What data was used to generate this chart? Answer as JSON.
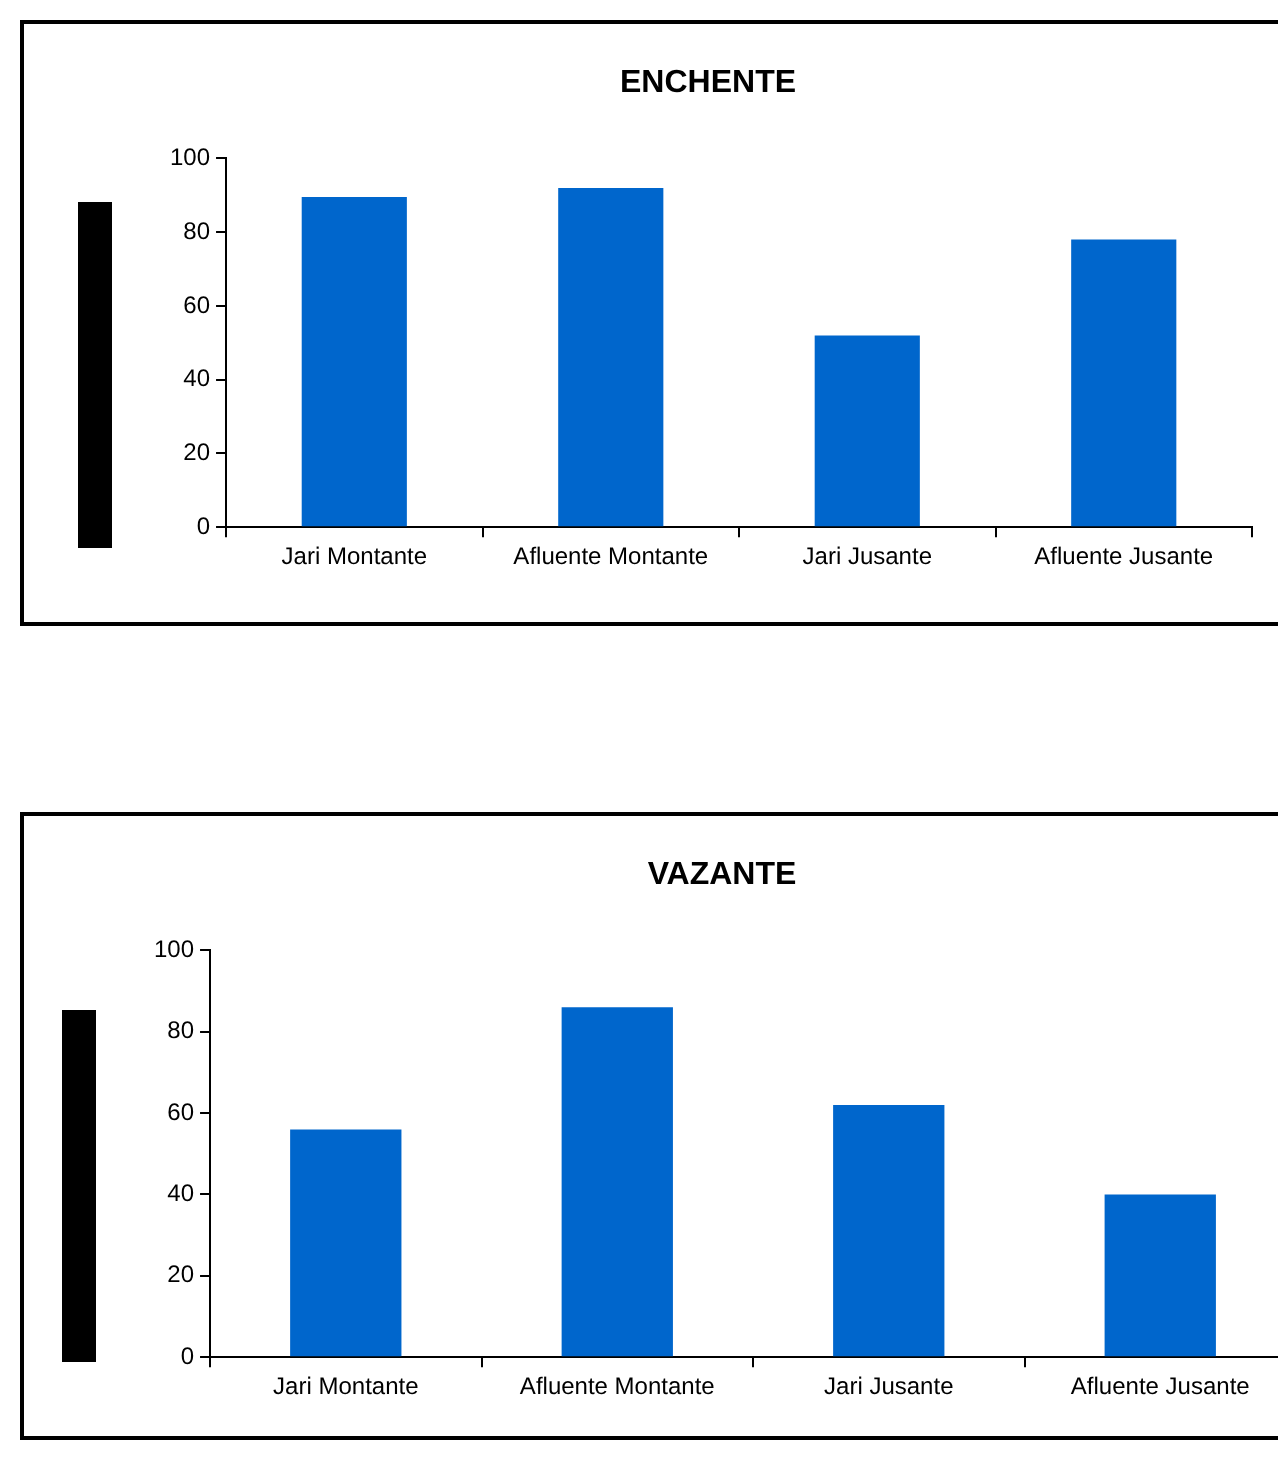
{
  "chart_data": [
    {
      "type": "bar",
      "title": "ENCHENTE",
      "categories": [
        "Jari Montante",
        "Afluente Montante",
        "Jari Jusante",
        "Afluente Jusante"
      ],
      "values": [
        89.5,
        92,
        52,
        78
      ],
      "color": "#0066cc",
      "ylim": [
        0,
        100
      ],
      "yticks": [
        0,
        20,
        40,
        60,
        80,
        100
      ],
      "grid": false,
      "legend": false
    },
    {
      "type": "bar",
      "title": "VAZANTE",
      "categories": [
        "Jari Montante",
        "Afluente Montante",
        "Jari Jusante",
        "Afluente Jusante"
      ],
      "values": [
        56,
        86,
        62,
        40
      ],
      "color": "#0066cc",
      "ylim": [
        0,
        100
      ],
      "yticks": [
        0,
        20,
        40,
        60,
        80,
        100
      ],
      "grid": false,
      "legend": false
    }
  ]
}
